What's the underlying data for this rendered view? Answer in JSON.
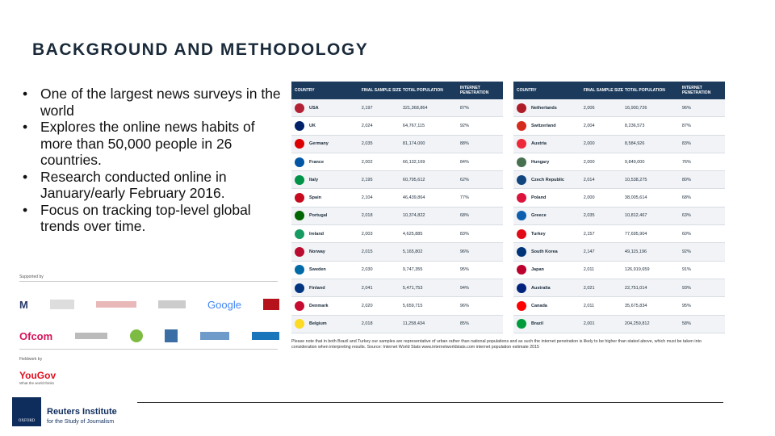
{
  "title": "BACKGROUND AND METHODOLOGY",
  "bullets": [
    "One of the largest news surveys in the world",
    "Explores the online news habits of more than 50,000 people in 26 countries.",
    "Research conducted online in January/early February 2016.",
    "Focus on tracking top-level global trends over time."
  ],
  "supported_by_label": "Supported by",
  "logos_row1": [
    "M",
    "",
    "",
    "",
    "Google",
    ""
  ],
  "logos_row2": [
    "Ofcom",
    "",
    "",
    "",
    "",
    ""
  ],
  "fieldwork_label": "Fieldwork by",
  "yougov": "YouGov",
  "yougov_sub": "What the world thinks",
  "table_headers": {
    "country": "COUNTRY",
    "sample": "FINAL SAMPLE SIZE",
    "population": "TOTAL POPULATION",
    "penetration": "INTERNET PENETRATION"
  },
  "left_table": [
    {
      "country": "USA",
      "sample": "2,197",
      "population": "321,368,864",
      "penetration": "87%",
      "flag": "#b22234"
    },
    {
      "country": "UK",
      "sample": "2,024",
      "population": "64,767,115",
      "penetration": "92%",
      "flag": "#012169"
    },
    {
      "country": "Germany",
      "sample": "2,035",
      "population": "81,174,000",
      "penetration": "88%",
      "flag": "#dd0000"
    },
    {
      "country": "France",
      "sample": "2,002",
      "population": "66,132,169",
      "penetration": "84%",
      "flag": "#0055a4"
    },
    {
      "country": "Italy",
      "sample": "2,195",
      "population": "60,795,612",
      "penetration": "62%",
      "flag": "#009246"
    },
    {
      "country": "Spain",
      "sample": "2,104",
      "population": "46,439,864",
      "penetration": "77%",
      "flag": "#c60b1e"
    },
    {
      "country": "Portugal",
      "sample": "2,018",
      "population": "10,374,822",
      "penetration": "68%",
      "flag": "#006600"
    },
    {
      "country": "Ireland",
      "sample": "2,003",
      "population": "4,625,885",
      "penetration": "83%",
      "flag": "#169b62"
    },
    {
      "country": "Norway",
      "sample": "2,015",
      "population": "5,165,802",
      "penetration": "96%",
      "flag": "#ba0c2f"
    },
    {
      "country": "Sweden",
      "sample": "2,030",
      "population": "9,747,355",
      "penetration": "95%",
      "flag": "#006aa7"
    },
    {
      "country": "Finland",
      "sample": "2,041",
      "population": "5,471,753",
      "penetration": "94%",
      "flag": "#003580"
    },
    {
      "country": "Denmark",
      "sample": "2,020",
      "population": "5,659,715",
      "penetration": "96%",
      "flag": "#c60c30"
    },
    {
      "country": "Belgium",
      "sample": "2,018",
      "population": "11,258,434",
      "penetration": "85%",
      "flag": "#fdda24"
    }
  ],
  "right_table": [
    {
      "country": "Netherlands",
      "sample": "2,006",
      "population": "16,900,726",
      "penetration": "96%",
      "flag": "#ae1c28"
    },
    {
      "country": "Switzerland",
      "sample": "2,004",
      "population": "8,236,573",
      "penetration": "87%",
      "flag": "#d52b1e"
    },
    {
      "country": "Austria",
      "sample": "2,000",
      "population": "8,584,926",
      "penetration": "83%",
      "flag": "#ed2939"
    },
    {
      "country": "Hungary",
      "sample": "2,000",
      "population": "9,849,000",
      "penetration": "76%",
      "flag": "#477050"
    },
    {
      "country": "Czech Republic",
      "sample": "2,014",
      "population": "10,538,275",
      "penetration": "80%",
      "flag": "#11457e"
    },
    {
      "country": "Poland",
      "sample": "2,000",
      "population": "38,005,614",
      "penetration": "68%",
      "flag": "#dc143c"
    },
    {
      "country": "Greece",
      "sample": "2,035",
      "population": "10,812,467",
      "penetration": "63%",
      "flag": "#0d5eaf"
    },
    {
      "country": "Turkey",
      "sample": "2,157",
      "population": "77,695,904",
      "penetration": "60%",
      "flag": "#e30a17"
    },
    {
      "country": "South Korea",
      "sample": "2,147",
      "population": "49,115,196",
      "penetration": "92%",
      "flag": "#003478"
    },
    {
      "country": "Japan",
      "sample": "2,011",
      "population": "126,919,659",
      "penetration": "91%",
      "flag": "#bc002d"
    },
    {
      "country": "Australia",
      "sample": "2,021",
      "population": "22,751,014",
      "penetration": "93%",
      "flag": "#00247d"
    },
    {
      "country": "Canada",
      "sample": "2,011",
      "population": "35,675,834",
      "penetration": "95%",
      "flag": "#ff0000"
    },
    {
      "country": "Brazil",
      "sample": "2,001",
      "population": "204,259,812",
      "penetration": "58%",
      "flag": "#009c3b"
    }
  ],
  "note": "Please note that in both Brazil and Turkey our samples are representative of urban rather than national populations and as such the internet penetration is likely to be higher than stated above, which must be taken into consideration when interpreting results. Source: Internet World Stats www.internetworldstats.com internet population estimate 2015",
  "footer": {
    "crest_label": "OXFORD",
    "institute": "Reuters Institute",
    "institute_sub": "for the Study of Journalism"
  }
}
